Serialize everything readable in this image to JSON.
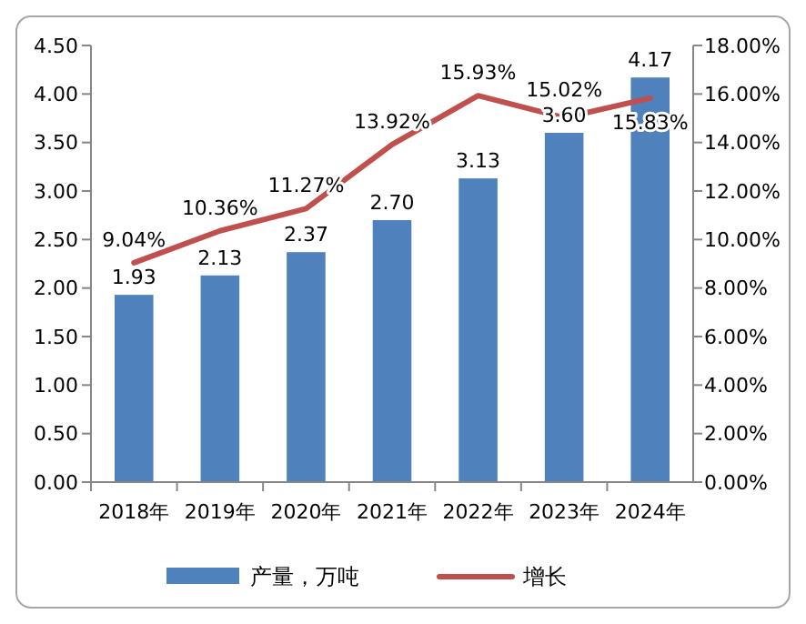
{
  "chart_data": {
    "type": "bar",
    "categories": [
      "2018年",
      "2019年",
      "2020年",
      "2021年",
      "2022年",
      "2023年",
      "2024年"
    ],
    "series": [
      {
        "name": "产量，万吨",
        "color": "#4f81bd",
        "values": [
          1.93,
          2.13,
          2.37,
          2.7,
          3.13,
          3.6,
          4.17
        ],
        "value_labels": [
          "1.93",
          "2.13",
          "2.37",
          "2.70",
          "3.13",
          "3.60",
          "4.17"
        ]
      },
      {
        "name": "增长",
        "type": "line",
        "axis": "y2",
        "color": "#c0504d",
        "values": [
          9.04,
          10.36,
          11.27,
          13.92,
          15.93,
          15.02,
          15.83
        ],
        "value_labels": [
          "9.04%",
          "10.36%",
          "11.27%",
          "13.92%",
          "15.93%",
          "15.02%",
          "15.83%"
        ]
      }
    ],
    "ylim": [
      0,
      4.5
    ],
    "yticks": [
      {
        "value": 0,
        "label": "0.00"
      },
      {
        "value": 0.5,
        "label": "0.50"
      },
      {
        "value": 1,
        "label": "1.00"
      },
      {
        "value": 1.5,
        "label": "1.50"
      },
      {
        "value": 2,
        "label": "2.00"
      },
      {
        "value": 2.5,
        "label": "2.50"
      },
      {
        "value": 3,
        "label": "3.00"
      },
      {
        "value": 3.5,
        "label": "3.50"
      },
      {
        "value": 4,
        "label": "4.00"
      },
      {
        "value": 4.5,
        "label": "4.50"
      }
    ],
    "y2lim": [
      0,
      18
    ],
    "y2ticks": [
      {
        "value": 0,
        "label": "0.00%"
      },
      {
        "value": 2,
        "label": "2.00%"
      },
      {
        "value": 4,
        "label": "4.00%"
      },
      {
        "value": 6,
        "label": "6.00%"
      },
      {
        "value": 8,
        "label": "8.00%"
      },
      {
        "value": 10,
        "label": "10.00%"
      },
      {
        "value": 12,
        "label": "12.00%"
      },
      {
        "value": 14,
        "label": "14.00%"
      },
      {
        "value": 16,
        "label": "16.00%"
      },
      {
        "value": 18,
        "label": "18.00%"
      }
    ],
    "grid": false,
    "legend": "bottom",
    "marker": "none",
    "line_style": "solid"
  }
}
